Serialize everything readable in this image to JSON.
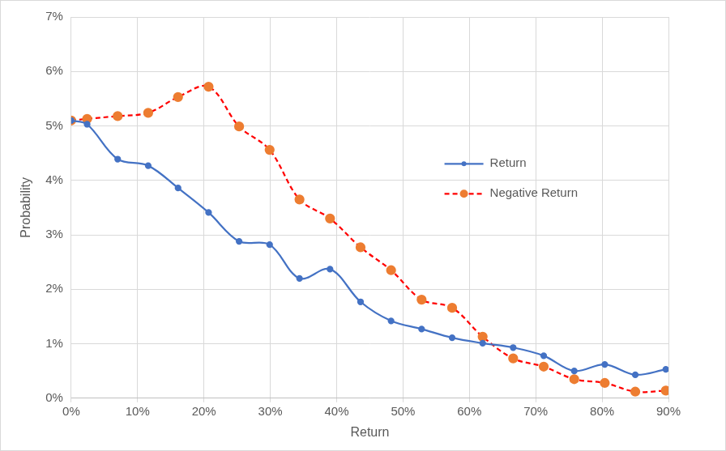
{
  "chart_data": {
    "type": "line",
    "x_label": "Return",
    "y_label": "Probability",
    "xlim": [
      0,
      90
    ],
    "ylim": [
      0,
      7
    ],
    "xticks": [
      {
        "value": 0,
        "label": "0%"
      },
      {
        "value": 10,
        "label": "10%"
      },
      {
        "value": 20,
        "label": "20%"
      },
      {
        "value": 30,
        "label": "30%"
      },
      {
        "value": 40,
        "label": "40%"
      },
      {
        "value": 50,
        "label": "50%"
      },
      {
        "value": 60,
        "label": "60%"
      },
      {
        "value": 70,
        "label": "70%"
      },
      {
        "value": 80,
        "label": "80%"
      },
      {
        "value": 90,
        "label": "90%"
      }
    ],
    "yticks": [
      {
        "value": 0,
        "label": "0%"
      },
      {
        "value": 1,
        "label": "1%"
      },
      {
        "value": 2,
        "label": "2%"
      },
      {
        "value": 3,
        "label": "3%"
      },
      {
        "value": 4,
        "label": "4%"
      },
      {
        "value": 5,
        "label": "5%"
      },
      {
        "value": 6,
        "label": "6%"
      },
      {
        "value": 7,
        "label": "7%"
      }
    ],
    "grid": true,
    "legend": "right",
    "x": [
      0,
      2.4,
      7.0,
      11.6,
      16.1,
      20.7,
      25.3,
      29.9,
      34.4,
      39.0,
      43.6,
      48.2,
      52.8,
      57.4,
      62.0,
      66.6,
      71.2,
      75.8,
      80.4,
      85.0,
      89.6
    ],
    "series": [
      {
        "name": "Return",
        "color": "#4472c4",
        "marker": "circle",
        "line_style": "solid",
        "values": [
          5.1,
          5.03,
          4.39,
          4.27,
          3.86,
          3.41,
          2.88,
          2.82,
          2.2,
          2.37,
          1.77,
          1.42,
          1.27,
          1.11,
          1.01,
          0.93,
          0.78,
          0.5,
          0.62,
          0.43,
          0.53
        ]
      },
      {
        "name": "Negative Return",
        "color": "#ff0000",
        "marker": "circle",
        "line_style": "dashed",
        "values": [
          5.1,
          5.13,
          5.18,
          5.24,
          5.53,
          5.72,
          4.99,
          4.56,
          3.65,
          3.3,
          2.77,
          2.35,
          1.81,
          1.66,
          1.13,
          0.73,
          0.58,
          0.35,
          0.28,
          0.12,
          0.14
        ]
      }
    ]
  }
}
